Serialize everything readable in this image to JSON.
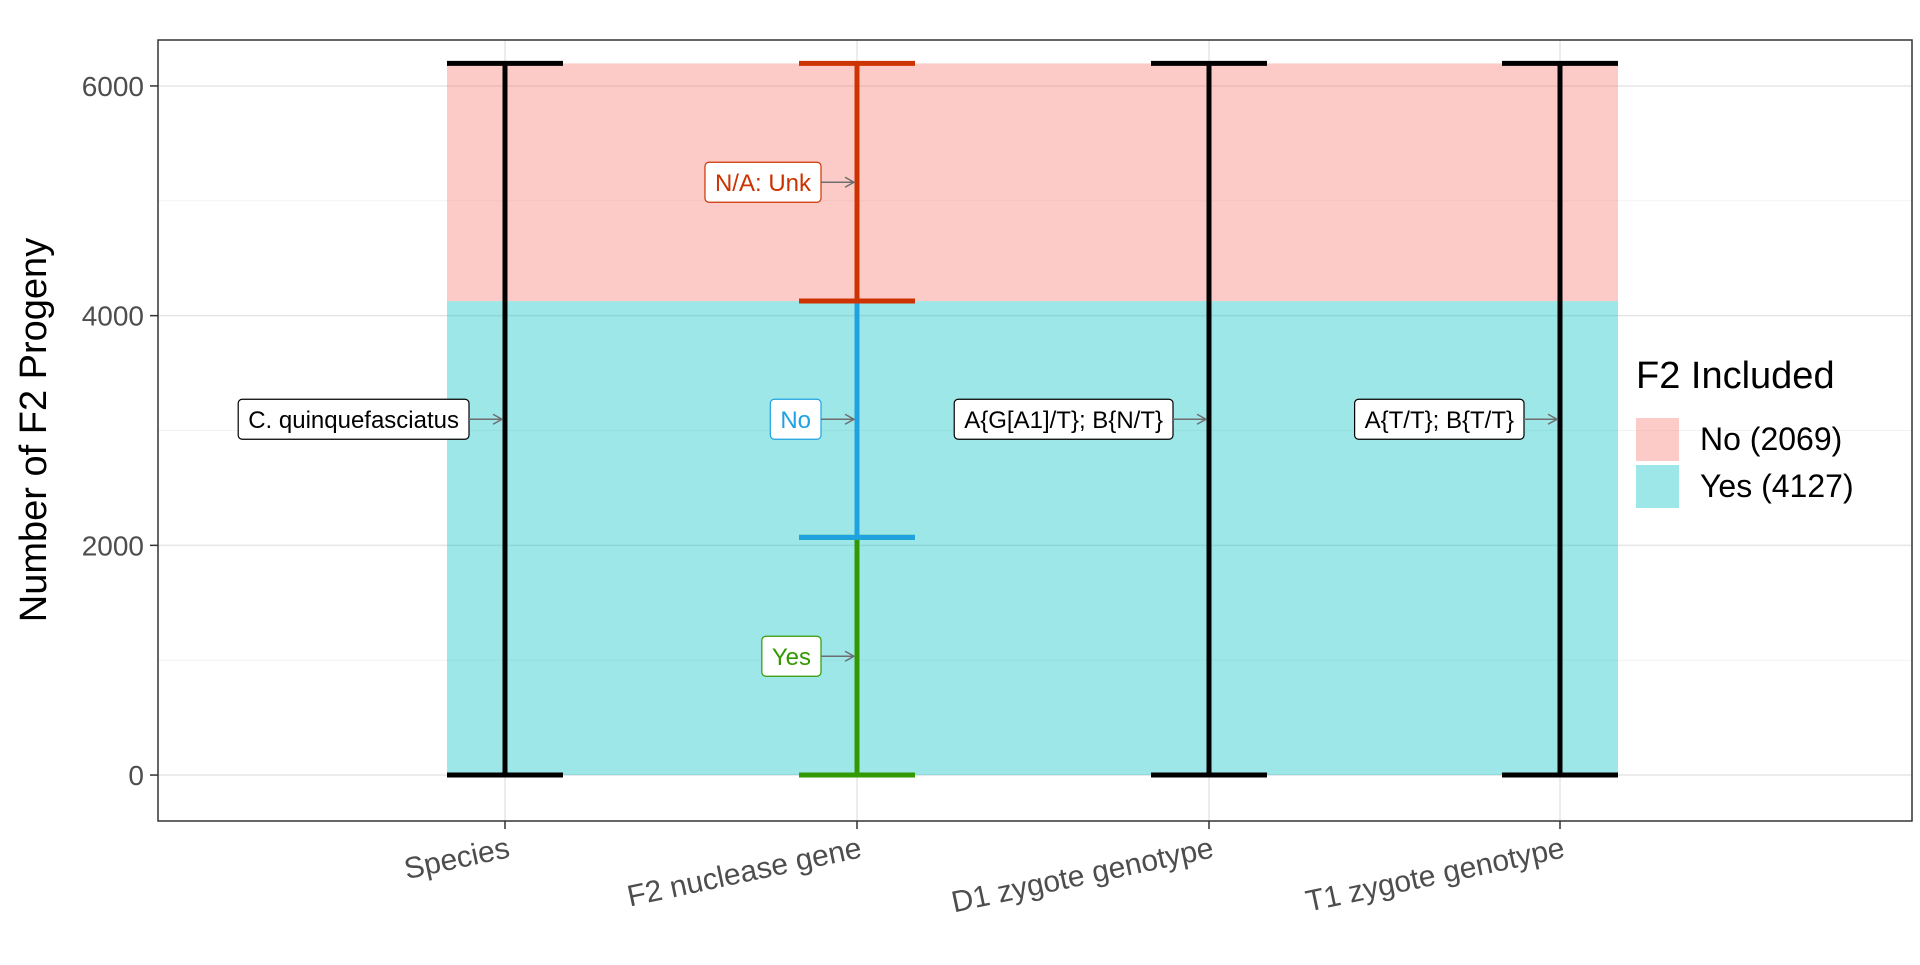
{
  "chart_data": {
    "type": "alluvial",
    "ylabel": "Number of F2 Progeny",
    "xlabel": "",
    "ylim": [
      -400,
      6400
    ],
    "y_ticks": [
      0,
      2000,
      4000,
      6000
    ],
    "grid": true,
    "axes": [
      "Species",
      "F2 nuclease gene",
      "D1 zygote genotype",
      "T1 zygote genotype"
    ],
    "legend": {
      "title": "F2 Included",
      "position": "right",
      "entries": [
        {
          "label": "No (2069)",
          "color": "#F8766D",
          "value": 2069
        },
        {
          "label": "Yes (4127)",
          "color": "#00BFC4",
          "value": 4127
        }
      ]
    },
    "flows": [
      {
        "group": "Yes",
        "value": 4127,
        "color": "#00BFC4"
      },
      {
        "group": "No",
        "value": 2069,
        "color": "#F8766D"
      }
    ],
    "strata": [
      {
        "axis": "Species",
        "label": "C. quinquefasciatus",
        "from": 0,
        "to": 6196,
        "color": "#000000",
        "text_color": "#000000"
      },
      {
        "axis": "F2 nuclease gene",
        "label": "Yes",
        "from": 0,
        "to": 2069,
        "color": "#339900",
        "text_color": "#339900"
      },
      {
        "axis": "F2 nuclease gene",
        "label": "No",
        "from": 2069,
        "to": 4127,
        "color": "#1FA3E0",
        "text_color": "#1FA3E0"
      },
      {
        "axis": "F2 nuclease gene",
        "label": "N/A: Unk",
        "from": 4127,
        "to": 6196,
        "color": "#CC3300",
        "text_color": "#CC3300"
      },
      {
        "axis": "D1 zygote genotype",
        "label": "A{G[A1]/T}; B{N/T}",
        "from": 0,
        "to": 6196,
        "color": "#000000",
        "text_color": "#000000"
      },
      {
        "axis": "T1 zygote genotype",
        "label": "A{T/T}; B{T/T}",
        "from": 0,
        "to": 6196,
        "color": "#000000",
        "text_color": "#000000"
      }
    ]
  }
}
